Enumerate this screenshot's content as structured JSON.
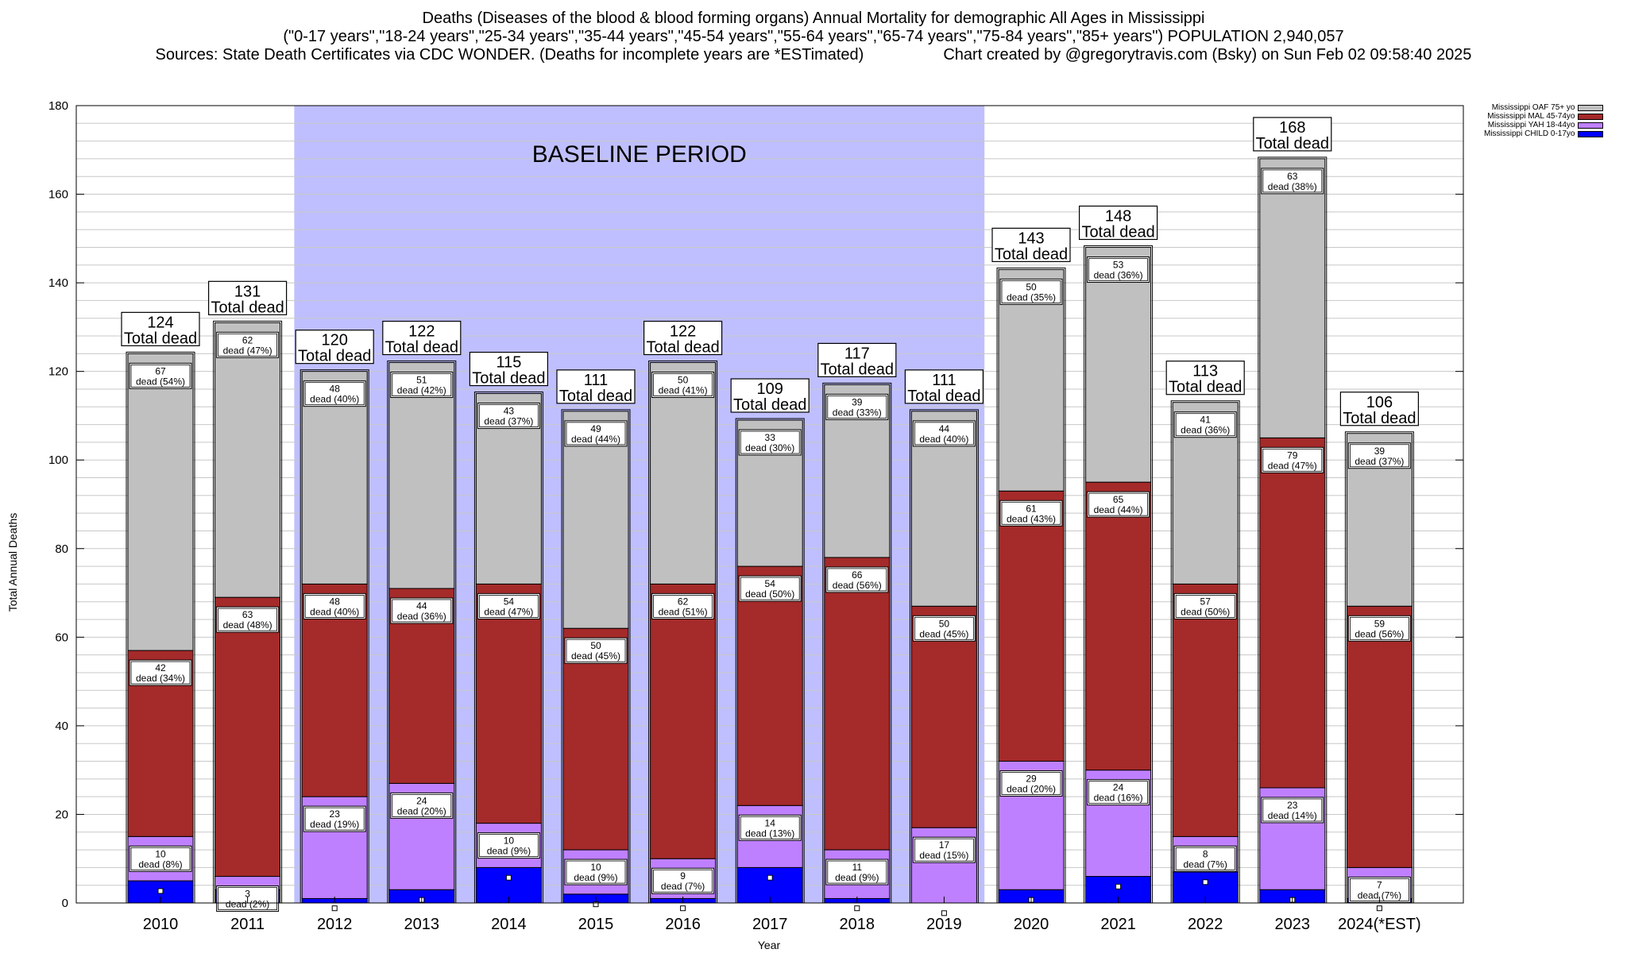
{
  "header": {
    "title": "Deaths (Diseases of the blood & blood forming organs) Annual Mortality for demographic All Ages in Mississippi",
    "subtitle": "(\"0-17 years\",\"18-24 years\",\"25-34 years\",\"35-44 years\",\"45-54 years\",\"55-64 years\",\"65-74 years\",\"75-84 years\",\"85+ years\") POPULATION 2,940,057",
    "sources": "Sources: State Death Certificates via CDC WONDER. (Deaths for incomplete years are *ESTimated)",
    "credit": "Chart created by @gregorytravis.com (Bsky) on Sun Feb 02 09:58:40 2025"
  },
  "chart_data": {
    "type": "bar",
    "stacked": true,
    "xlabel": "Year",
    "ylabel": "Total Annual Deaths",
    "ylim": [
      0,
      180
    ],
    "yticks": [
      0,
      20,
      40,
      60,
      80,
      100,
      120,
      140,
      160,
      180
    ],
    "minor_grid_step": 4,
    "grid": true,
    "legend_position": "top-right",
    "baseline": {
      "label": "BASELINE PERIOD",
      "from": "2012",
      "to": "2019"
    },
    "categories": [
      "2010",
      "2011",
      "2012",
      "2013",
      "2014",
      "2015",
      "2016",
      "2017",
      "2018",
      "2019",
      "2020",
      "2021",
      "2022",
      "2023",
      "2024(*EST)"
    ],
    "totals": [
      124,
      131,
      120,
      122,
      115,
      111,
      122,
      109,
      117,
      111,
      143,
      148,
      113,
      168,
      106
    ],
    "total_label_suffix": "Total dead",
    "dead_word": "dead",
    "series": [
      {
        "name": "Mississippi CHILD 0-17yo",
        "color": "#0000ff",
        "values": [
          5,
          3,
          1,
          3,
          8,
          2,
          1,
          8,
          1,
          0,
          3,
          6,
          7,
          3,
          1
        ],
        "labels": [
          null,
          null,
          null,
          null,
          null,
          null,
          null,
          null,
          null,
          null,
          null,
          null,
          null,
          null,
          null
        ],
        "markers": [
          2.7,
          1.5,
          -1.2,
          0.7,
          5.7,
          -0.3,
          -1.2,
          5.7,
          -1.2,
          -2.3,
          0.7,
          3.7,
          4.7,
          0.7,
          -1.2
        ]
      },
      {
        "name": "Mississippi YAH 18-44yo",
        "color": "#bf80ff",
        "values": [
          10,
          3,
          23,
          24,
          10,
          10,
          9,
          14,
          11,
          17,
          29,
          24,
          8,
          23,
          7
        ],
        "labels": [
          "10",
          "3",
          "23",
          "24",
          "10",
          "10",
          "9",
          "14",
          "11",
          "17",
          "29",
          "24",
          "8",
          "23",
          "7"
        ],
        "pct": [
          "(8%)",
          "(2%)",
          "(19%)",
          "(20%)",
          "(9%)",
          "(9%)",
          "(7%)",
          "(13%)",
          "(9%)",
          "(15%)",
          "(20%)",
          "(16%)",
          "(7%)",
          "(14%)",
          "(7%)"
        ]
      },
      {
        "name": "Mississippi MAL 45-74yo",
        "color": "#a52a2a",
        "values": [
          42,
          63,
          48,
          44,
          54,
          50,
          62,
          54,
          66,
          50,
          61,
          65,
          57,
          79,
          59
        ],
        "labels": [
          "42",
          "63",
          "48",
          "44",
          "54",
          "50",
          "62",
          "54",
          "66",
          "50",
          "61",
          "65",
          "57",
          "79",
          "59"
        ],
        "pct": [
          "(34%)",
          "(48%)",
          "(40%)",
          "(36%)",
          "(47%)",
          "(45%)",
          "(51%)",
          "(50%)",
          "(56%)",
          "(45%)",
          "(43%)",
          "(44%)",
          "(50%)",
          "(47%)",
          "(56%)"
        ]
      },
      {
        "name": "Mississippi OAF 75+ yo",
        "color": "#c0c0c0",
        "values": [
          67,
          62,
          48,
          51,
          43,
          49,
          50,
          33,
          39,
          44,
          50,
          53,
          41,
          63,
          39
        ],
        "labels": [
          "67",
          "62",
          "48",
          "51",
          "43",
          "49",
          "50",
          "33",
          "39",
          "44",
          "50",
          "53",
          "41",
          "63",
          "39"
        ],
        "pct": [
          "(54%)",
          "(47%)",
          "(40%)",
          "(42%)",
          "(37%)",
          "(44%)",
          "(41%)",
          "(30%)",
          "(33%)",
          "(40%)",
          "(35%)",
          "(36%)",
          "(36%)",
          "(38%)",
          "(37%)"
        ]
      }
    ]
  }
}
